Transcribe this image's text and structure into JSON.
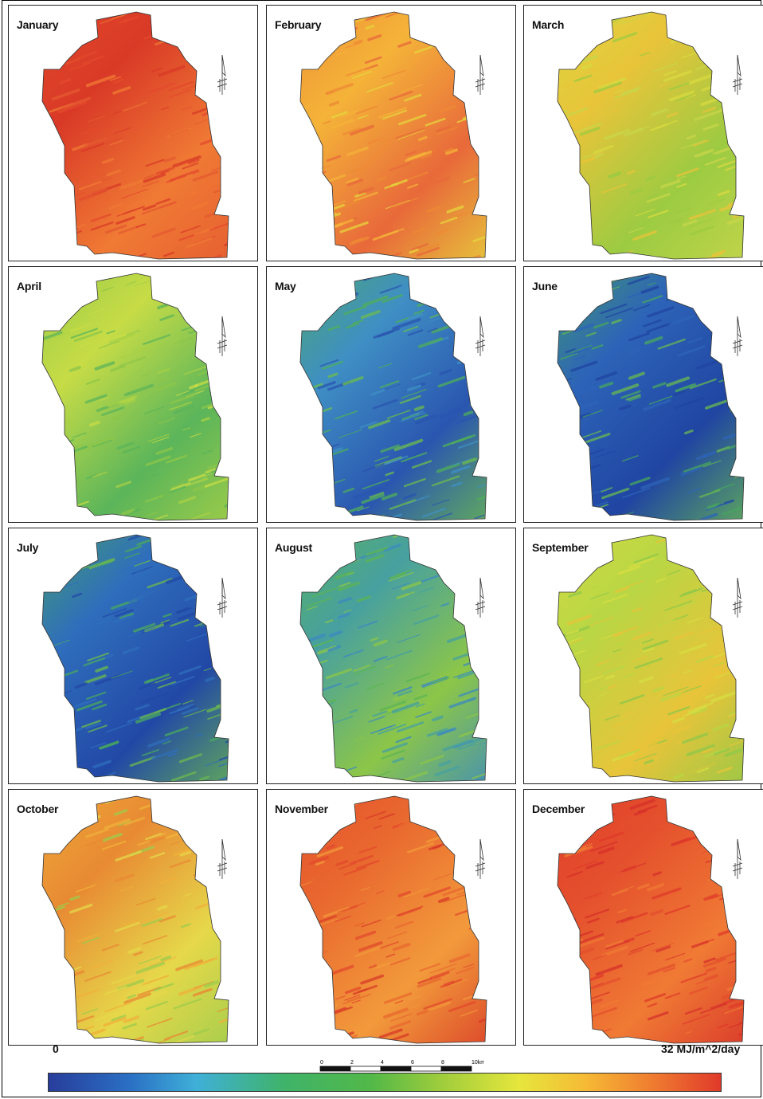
{
  "panels": [
    {
      "label": "January",
      "colors": [
        "#e34a2c",
        "#d93a27",
        "#f07a34",
        "#e45a30"
      ]
    },
    {
      "label": "February",
      "colors": [
        "#ee8a34",
        "#f4b339",
        "#e8693a",
        "#e6d43c"
      ]
    },
    {
      "label": "March",
      "colors": [
        "#d9da40",
        "#e8c43a",
        "#9ccb42",
        "#c8d64a"
      ]
    },
    {
      "label": "April",
      "colors": [
        "#8cc64a",
        "#c7dc46",
        "#5bb55a",
        "#a8d046"
      ]
    },
    {
      "label": "May",
      "colors": [
        "#4fae5a",
        "#3f8fc4",
        "#2a56b0",
        "#6cbb4e"
      ]
    },
    {
      "label": "June",
      "colors": [
        "#47a65e",
        "#2d64b8",
        "#2045a2",
        "#68b852"
      ]
    },
    {
      "label": "July",
      "colors": [
        "#49a95e",
        "#2f6ebc",
        "#2248a6",
        "#6bb84f"
      ]
    },
    {
      "label": "August",
      "colors": [
        "#5cb552",
        "#47a0a0",
        "#8cc648",
        "#3c8ac0"
      ]
    },
    {
      "label": "September",
      "colors": [
        "#d7de42",
        "#b9d644",
        "#e8c43a",
        "#8fc848"
      ]
    },
    {
      "label": "October",
      "colors": [
        "#f0b13a",
        "#e88a33",
        "#e6d84a",
        "#9ccc4c"
      ]
    },
    {
      "label": "November",
      "colors": [
        "#e34a2c",
        "#e9692f",
        "#f29a3b",
        "#d83a27"
      ]
    },
    {
      "label": "December",
      "colors": [
        "#e03a2a",
        "#e4502d",
        "#f07a34",
        "#d6312a"
      ]
    }
  ],
  "legend": {
    "min_label": "0",
    "max_label": "32 MJ/m^2/day",
    "colors": [
      "#283d9b",
      "#2a6fc4",
      "#3fb0d8",
      "#3fb36a",
      "#52b848",
      "#9ccc3c",
      "#e6e63c",
      "#f6b935",
      "#ef7b30",
      "#e03a2a"
    ]
  },
  "scalebar": {
    "ticks": [
      "0",
      "2",
      "4",
      "6",
      "8",
      "10km"
    ]
  }
}
